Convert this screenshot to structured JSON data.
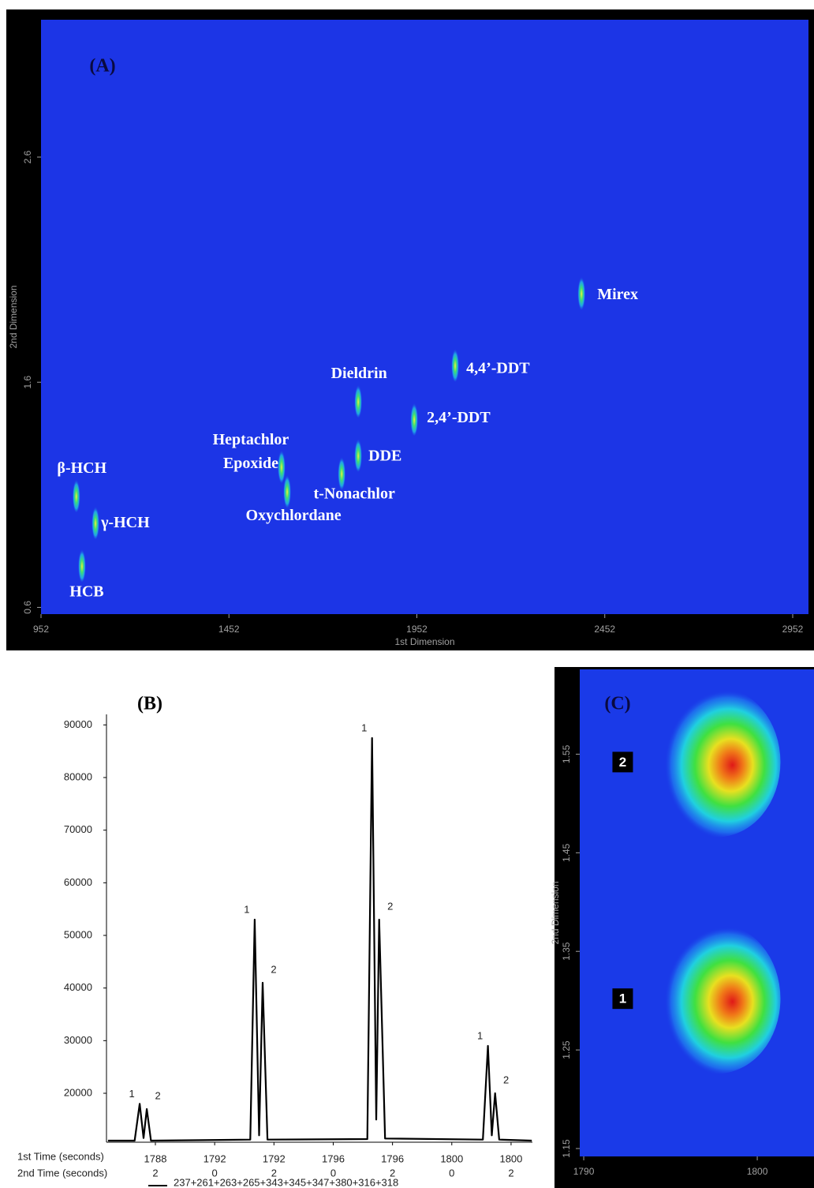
{
  "chart_data": [
    {
      "type": "contour",
      "title": "(A)",
      "xlabel": "1st Dimension",
      "ylabel": "2nd Dimension",
      "background": "#1c35e6",
      "xlim": [
        952,
        2994
      ],
      "ylim": [
        0.57,
        3.21
      ],
      "xticks": [
        952,
        1452,
        1952,
        2452,
        2952
      ],
      "yticks": [
        0.6,
        1.6,
        2.6
      ],
      "points": {
        "labels": [
          "HCB",
          "γ-HCH",
          "β-HCH",
          "Heptachlor Epoxide",
          "Oxychlordane",
          "t-Nonachlor",
          "DDE",
          "Dieldrin",
          "2,4’-DDT",
          "4,4’-DDT",
          "Mirex"
        ],
        "x": [
          1061,
          1097,
          1046,
          1592,
          1607,
          1752,
          1796,
          1796,
          1945,
          2054,
          2390
        ],
        "y": [
          0.79,
          0.98,
          1.1,
          1.23,
          1.12,
          1.2,
          1.28,
          1.52,
          1.44,
          1.68,
          2.0
        ]
      }
    },
    {
      "type": "line",
      "title": "(B)",
      "xlabel": "1st Time (seconds)",
      "xlabel2": "2nd Time (seconds)",
      "xlim": [
        1788.35,
        1802.72
      ],
      "ylim": [
        10700,
        92000
      ],
      "xticks": [
        {
          "value": 1790,
          "label": "1788"
        },
        {
          "value": 1792,
          "label": "1792"
        },
        {
          "value": 1794,
          "label": "1792"
        },
        {
          "value": 1796,
          "label": "1796"
        },
        {
          "value": 1798,
          "label": "1796"
        },
        {
          "value": 1800,
          "label": "1800"
        },
        {
          "value": 1802,
          "label": "1800"
        }
      ],
      "xticks2": [
        {
          "value": 1790,
          "label": "2"
        },
        {
          "value": 1792,
          "label": "0"
        },
        {
          "value": 1794,
          "label": "2"
        },
        {
          "value": 1796,
          "label": "0"
        },
        {
          "value": 1798,
          "label": "2"
        },
        {
          "value": 1800,
          "label": "0"
        },
        {
          "value": 1802,
          "label": "2"
        }
      ],
      "yticks": [
        20000,
        30000,
        40000,
        50000,
        60000,
        70000,
        80000,
        90000
      ],
      "series": [
        {
          "name": "237+261+263+265+343+345+347+380+316+318",
          "color": "#000000",
          "x": [
            1788.4,
            1789.3,
            1789.47,
            1789.6,
            1789.71,
            1789.85,
            1793.2,
            1793.35,
            1793.5,
            1793.62,
            1793.78,
            1797.15,
            1797.31,
            1797.45,
            1797.55,
            1797.75,
            1801.05,
            1801.22,
            1801.35,
            1801.46,
            1801.6,
            1802.7
          ],
          "values": [
            11000,
            11000,
            18000,
            11500,
            17000,
            11000,
            11200,
            53000,
            12000,
            41000,
            11200,
            11300,
            87500,
            15000,
            53000,
            11400,
            11200,
            29000,
            12000,
            20000,
            11200,
            11000
          ]
        }
      ],
      "peaks": [
        {
          "label": "1",
          "x": 1789.47,
          "y": 18000
        },
        {
          "label": "2",
          "x": 1789.71,
          "y": 17000
        },
        {
          "label": "1",
          "x": 1793.35,
          "y": 53000
        },
        {
          "label": "2",
          "x": 1793.62,
          "y": 41000
        },
        {
          "label": "1",
          "x": 1797.31,
          "y": 87500
        },
        {
          "label": "2",
          "x": 1797.55,
          "y": 53000
        },
        {
          "label": "1",
          "x": 1801.22,
          "y": 29000
        },
        {
          "label": "2",
          "x": 1801.46,
          "y": 20000
        }
      ]
    },
    {
      "type": "contour",
      "title": "(C)",
      "ylabel": "2nd Dimension",
      "background": "#1a3ae8",
      "xlim": [
        1789.77,
        1803.27
      ],
      "ylim": [
        1.142,
        1.636
      ],
      "xticks": [
        1790,
        1800
      ],
      "yticks": [
        1.15,
        1.25,
        1.35,
        1.45,
        1.55
      ],
      "points": {
        "labels": [
          "2",
          "1"
        ],
        "x": [
          1797.7,
          1797.7
        ],
        "y": [
          1.542,
          1.302
        ]
      }
    }
  ]
}
